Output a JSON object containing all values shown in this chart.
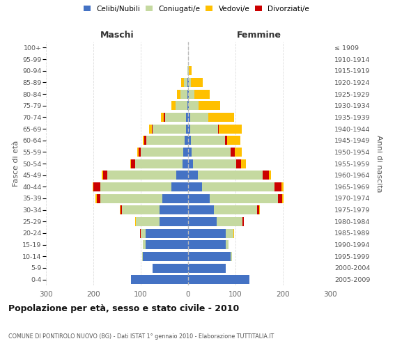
{
  "age_groups": [
    "0-4",
    "5-9",
    "10-14",
    "15-19",
    "20-24",
    "25-29",
    "30-34",
    "35-39",
    "40-44",
    "45-49",
    "50-54",
    "55-59",
    "60-64",
    "65-69",
    "70-74",
    "75-79",
    "80-84",
    "85-89",
    "90-94",
    "95-99",
    "100+"
  ],
  "birth_years": [
    "2005-2009",
    "2000-2004",
    "1995-1999",
    "1990-1994",
    "1985-1989",
    "1980-1984",
    "1975-1979",
    "1970-1974",
    "1965-1969",
    "1960-1964",
    "1955-1959",
    "1950-1954",
    "1945-1949",
    "1940-1944",
    "1935-1939",
    "1930-1934",
    "1925-1929",
    "1920-1924",
    "1915-1919",
    "1910-1914",
    "≤ 1909"
  ],
  "male": {
    "celibi": [
      120,
      75,
      95,
      90,
      90,
      60,
      60,
      55,
      35,
      25,
      12,
      10,
      8,
      5,
      4,
      2,
      1,
      1,
      0,
      0,
      0
    ],
    "coniugati": [
      0,
      0,
      2,
      5,
      10,
      50,
      80,
      130,
      150,
      145,
      100,
      90,
      80,
      70,
      45,
      25,
      15,
      8,
      2,
      0,
      0
    ],
    "vedovi": [
      0,
      0,
      0,
      0,
      1,
      1,
      1,
      2,
      2,
      2,
      2,
      2,
      3,
      5,
      6,
      8,
      8,
      5,
      0,
      0,
      0
    ],
    "divorziati": [
      0,
      0,
      0,
      0,
      1,
      1,
      3,
      8,
      15,
      10,
      8,
      5,
      5,
      2,
      2,
      0,
      0,
      0,
      0,
      0,
      0
    ]
  },
  "female": {
    "nubili": [
      130,
      80,
      90,
      80,
      80,
      60,
      55,
      45,
      30,
      20,
      10,
      8,
      6,
      5,
      4,
      2,
      1,
      1,
      0,
      0,
      0
    ],
    "coniugate": [
      0,
      0,
      2,
      5,
      15,
      55,
      90,
      145,
      152,
      138,
      92,
      82,
      72,
      58,
      38,
      20,
      12,
      5,
      2,
      0,
      0
    ],
    "vedove": [
      0,
      0,
      0,
      0,
      1,
      1,
      2,
      3,
      5,
      5,
      10,
      15,
      28,
      48,
      55,
      45,
      32,
      25,
      6,
      0,
      0
    ],
    "divorziate": [
      0,
      0,
      0,
      0,
      1,
      2,
      5,
      8,
      15,
      12,
      10,
      8,
      5,
      2,
      0,
      0,
      0,
      0,
      0,
      0,
      0
    ]
  },
  "colors": {
    "celibi": "#4472c4",
    "coniugati": "#c5d9a0",
    "vedovi": "#ffc000",
    "divorziati": "#cc0000"
  },
  "xlim": 300,
  "title": "Popolazione per età, sesso e stato civile - 2010",
  "subtitle": "COMUNE DI PONTIROLO NUOVO (BG) - Dati ISTAT 1° gennaio 2010 - Elaborazione TUTTITALIA.IT",
  "ylabel_left": "Fasce di età",
  "ylabel_right": "Anni di nascita",
  "legend_labels": [
    "Celibi/Nubili",
    "Coniugati/e",
    "Vedovi/e",
    "Divorziati/e"
  ],
  "maschi_label": "Maschi",
  "femmine_label": "Femmine",
  "background_color": "#ffffff",
  "grid_color": "#cccccc"
}
